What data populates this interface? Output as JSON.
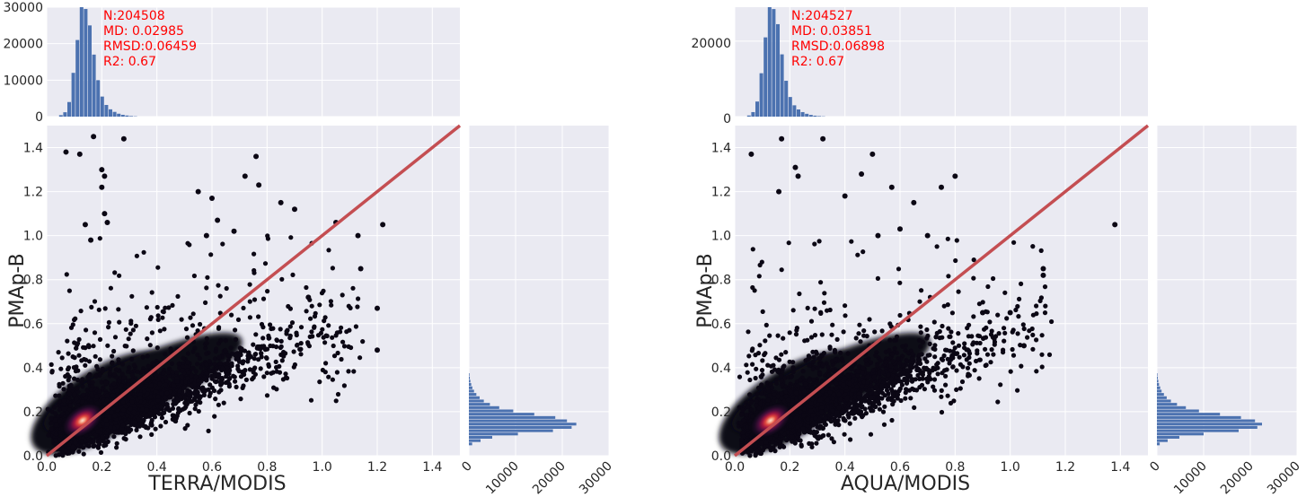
{
  "chart_data": [
    {
      "type": "scatter",
      "xlabel": "TERRA/MODIS",
      "ylabel": "PMAp-B",
      "xlim": [
        0,
        1.5
      ],
      "ylim": [
        0,
        1.5
      ],
      "xticks": [
        "0.0",
        "0.2",
        "0.4",
        "0.6",
        "0.8",
        "1.0",
        "1.2",
        "1.4"
      ],
      "yticks": [
        "0.0",
        "0.2",
        "0.4",
        "0.6",
        "0.8",
        "1.0",
        "1.2",
        "1.4"
      ],
      "grid": true,
      "reference_line": {
        "x": [
          0,
          1.5
        ],
        "y": [
          0,
          1.5
        ],
        "color": "#c44e52"
      },
      "density_peak": {
        "x": 0.13,
        "y": 0.16
      },
      "outliers": [
        [
          0.07,
          1.38
        ],
        [
          0.12,
          1.37
        ],
        [
          0.17,
          1.45
        ],
        [
          0.28,
          1.44
        ],
        [
          0.2,
          1.3
        ],
        [
          0.21,
          1.27
        ],
        [
          0.2,
          1.22
        ],
        [
          0.21,
          1.1
        ],
        [
          0.22,
          1.06
        ],
        [
          0.16,
          0.98
        ],
        [
          0.14,
          1.05
        ],
        [
          0.55,
          1.2
        ],
        [
          0.6,
          1.17
        ],
        [
          0.72,
          1.27
        ],
        [
          0.76,
          1.36
        ],
        [
          0.77,
          1.23
        ],
        [
          0.62,
          1.07
        ],
        [
          0.58,
          1.0
        ],
        [
          0.68,
          1.02
        ],
        [
          0.85,
          1.15
        ],
        [
          0.9,
          1.12
        ],
        [
          1.05,
          1.06
        ],
        [
          1.22,
          1.05
        ],
        [
          1.13,
          1.0
        ],
        [
          1.14,
          0.85
        ],
        [
          1.2,
          0.67
        ],
        [
          1.2,
          0.48
        ],
        [
          0.95,
          0.72
        ]
      ],
      "stats": {
        "n": "N:204508",
        "md": "MD: 0.02985",
        "rmsd": "RMSD:0.06459",
        "r2": "R2: 0.67"
      },
      "hist_top": {
        "yticks": [
          "0",
          "10000",
          "20000",
          "30000"
        ],
        "ylim": [
          0,
          30000
        ],
        "bin_width": 0.015,
        "bins_start": 0.045,
        "values": [
          400,
          1200,
          4000,
          12000,
          21000,
          30000,
          29500,
          25000,
          17000,
          10000,
          5500,
          3200,
          2000,
          1300,
          800,
          500,
          300,
          150,
          80
        ]
      },
      "hist_right": {
        "xticks": [
          "0",
          "10000",
          "20000",
          "30000"
        ],
        "xlim": [
          0,
          30000
        ],
        "bin_width": 0.015,
        "bins_start": 0.045,
        "values": [
          700,
          2500,
          5000,
          10500,
          18000,
          22000,
          23000,
          21000,
          18500,
          14000,
          9500,
          6500,
          4500,
          3200,
          2300,
          1600,
          1100,
          750,
          500,
          320,
          200,
          120
        ]
      }
    },
    {
      "type": "scatter",
      "xlabel": "AQUA/MODIS",
      "ylabel": "PMAp-B",
      "xlim": [
        0,
        1.5
      ],
      "ylim": [
        0,
        1.5
      ],
      "xticks": [
        "0.0",
        "0.2",
        "0.4",
        "0.6",
        "0.8",
        "1.0",
        "1.2",
        "1.4"
      ],
      "yticks": [
        "0.0",
        "0.2",
        "0.4",
        "0.6",
        "0.8",
        "1.0",
        "1.2",
        "1.4"
      ],
      "grid": true,
      "reference_line": {
        "x": [
          0,
          1.5
        ],
        "y": [
          0,
          1.5
        ],
        "color": "#c44e52"
      },
      "density_peak": {
        "x": 0.13,
        "y": 0.16
      },
      "outliers": [
        [
          0.06,
          1.37
        ],
        [
          0.17,
          1.44
        ],
        [
          0.32,
          1.44
        ],
        [
          0.22,
          1.31
        ],
        [
          0.23,
          1.27
        ],
        [
          0.16,
          1.2
        ],
        [
          0.5,
          1.37
        ],
        [
          0.46,
          1.28
        ],
        [
          0.4,
          1.18
        ],
        [
          0.57,
          1.22
        ],
        [
          0.65,
          1.15
        ],
        [
          0.75,
          1.22
        ],
        [
          0.8,
          1.27
        ],
        [
          1.38,
          1.05
        ],
        [
          0.6,
          1.03
        ],
        [
          0.52,
          1.0
        ],
        [
          0.7,
          1.0
        ],
        [
          1.12,
          0.85
        ],
        [
          1.12,
          0.82
        ],
        [
          1.0,
          0.65
        ],
        [
          0.9,
          0.65
        ],
        [
          1.05,
          0.5
        ]
      ],
      "stats": {
        "n": "N:204527",
        "md": "MD: 0.03851",
        "rmsd": "RMSD:0.06898",
        "r2": "R2: 0.67"
      },
      "hist_top": {
        "yticks": [
          "0",
          "20000"
        ],
        "ylim": [
          0,
          29000
        ],
        "bin_width": 0.015,
        "bins_start": 0.045,
        "values": [
          300,
          1200,
          4000,
          11500,
          21000,
          29000,
          28500,
          24500,
          16500,
          9500,
          5200,
          3000,
          1900,
          1200,
          750,
          450,
          250,
          130,
          70
        ]
      },
      "hist_right": {
        "xticks": [
          "0",
          "10000",
          "20000",
          "30000"
        ],
        "xlim": [
          0,
          30000
        ],
        "bin_width": 0.015,
        "bins_start": 0.045,
        "values": [
          600,
          2300,
          4800,
          10000,
          17500,
          21500,
          22500,
          21000,
          18000,
          13500,
          9000,
          6200,
          4300,
          3000,
          2100,
          1500,
          1000,
          700,
          450,
          300,
          180,
          100
        ]
      }
    }
  ]
}
